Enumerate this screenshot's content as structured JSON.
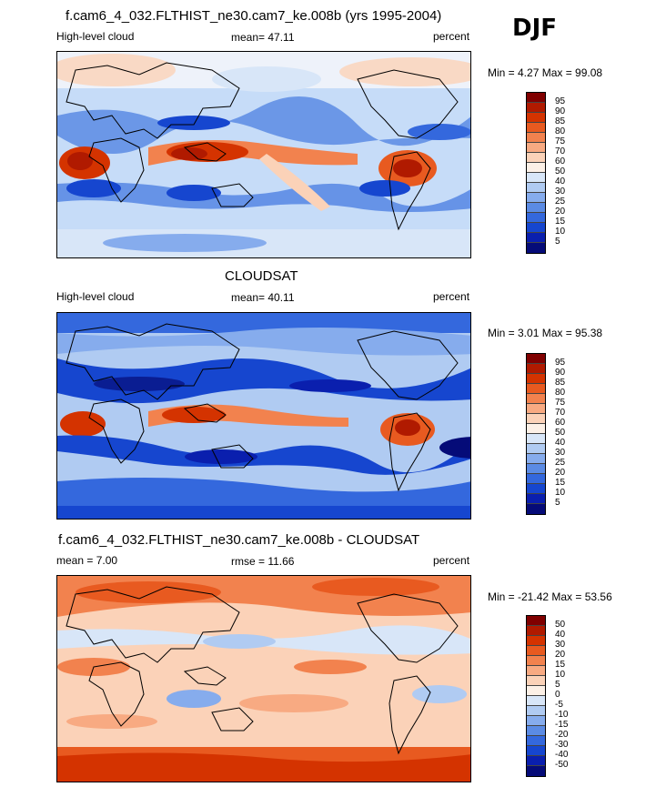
{
  "season": "DJF",
  "model_title": "f.cam6_4_032.FLTHIST_ne30.cam7_ke.008b (yrs 1995-2004)",
  "obs_title": "CLOUDSAT",
  "diff_title": "f.cam6_4_032.FLTHIST_ne30.cam7_ke.008b - CLOUDSAT",
  "panels": [
    {
      "left_label": "High-level cloud",
      "center_label": "mean=  47.11",
      "right_label": "percent",
      "range_label": "Min =   4.27 Max =  99.08",
      "cbar_levels": [
        "95",
        "90",
        "85",
        "80",
        "75",
        "70",
        "60",
        "50",
        "40",
        "30",
        "25",
        "20",
        "15",
        "10",
        "5"
      ],
      "cbar_colors": [
        "#800000",
        "#b01a00",
        "#d43300",
        "#e85a20",
        "#f2824e",
        "#f8aa82",
        "#fbd2b8",
        "#fcf0e6",
        "#d8e6f8",
        "#b0cbf2",
        "#86aced",
        "#5b8be4",
        "#3468dd",
        "#1646cf",
        "#0a1fae",
        "#050b78"
      ]
    },
    {
      "left_label": "High-level cloud",
      "center_label": "mean=  40.11",
      "right_label": "percent",
      "range_label": "Min =   3.01 Max =  95.38",
      "cbar_levels": [
        "95",
        "90",
        "85",
        "80",
        "75",
        "70",
        "60",
        "50",
        "40",
        "30",
        "25",
        "20",
        "15",
        "10",
        "5"
      ],
      "cbar_colors": [
        "#800000",
        "#b01a00",
        "#d43300",
        "#e85a20",
        "#f2824e",
        "#f8aa82",
        "#fbd2b8",
        "#fcf0e6",
        "#d8e6f8",
        "#b0cbf2",
        "#86aced",
        "#5b8be4",
        "#3468dd",
        "#1646cf",
        "#0a1fae",
        "#050b78"
      ]
    },
    {
      "left_label": "mean =   7.00",
      "center_label": "rmse =  11.66",
      "right_label": "percent",
      "range_label": "Min = -21.42 Max =  53.56",
      "cbar_levels": [
        "50",
        "40",
        "30",
        "20",
        "15",
        "10",
        "5",
        "0",
        "-5",
        "-10",
        "-15",
        "-20",
        "-30",
        "-40",
        "-50"
      ],
      "cbar_colors": [
        "#800000",
        "#b01a00",
        "#d43300",
        "#e85a20",
        "#f2824e",
        "#f8aa82",
        "#fbd2b8",
        "#fcf0e6",
        "#d8e6f8",
        "#b0cbf2",
        "#86aced",
        "#5b8be4",
        "#3468dd",
        "#1646cf",
        "#0a1fae",
        "#050b78"
      ]
    }
  ],
  "chart_data": [
    {
      "type": "heatmap",
      "title": "f.cam6_4_032.FLTHIST_ne30.cam7_ke.008b (yrs 1995-2004)",
      "variable": "High-level cloud",
      "units": "percent",
      "mean": 47.11,
      "min": 4.27,
      "max": 99.08,
      "contour_levels": [
        5,
        10,
        15,
        20,
        25,
        30,
        40,
        50,
        60,
        70,
        75,
        80,
        85,
        90,
        95
      ]
    },
    {
      "type": "heatmap",
      "title": "CLOUDSAT",
      "variable": "High-level cloud",
      "units": "percent",
      "mean": 40.11,
      "min": 3.01,
      "max": 95.38,
      "contour_levels": [
        5,
        10,
        15,
        20,
        25,
        30,
        40,
        50,
        60,
        70,
        75,
        80,
        85,
        90,
        95
      ]
    },
    {
      "type": "heatmap",
      "title": "f.cam6_4_032.FLTHIST_ne30.cam7_ke.008b - CLOUDSAT",
      "units": "percent",
      "mean": 7.0,
      "rmse": 11.66,
      "min": -21.42,
      "max": 53.56,
      "contour_levels": [
        -50,
        -40,
        -30,
        -20,
        -15,
        -10,
        -5,
        0,
        5,
        10,
        15,
        20,
        30,
        40,
        50
      ]
    }
  ]
}
